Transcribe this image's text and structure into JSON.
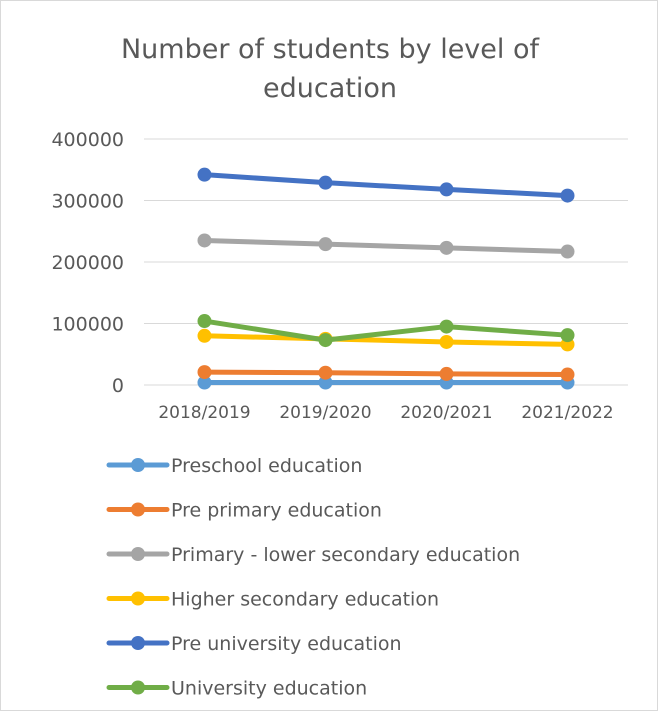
{
  "chart_data": {
    "type": "line",
    "title_lines": [
      "Number of students by level of",
      "education"
    ],
    "categories": [
      "2018/2019",
      "2019/2020",
      "2020/2021",
      "2021/2022"
    ],
    "ylim": [
      0,
      400000
    ],
    "yticks": [
      0,
      100000,
      200000,
      300000,
      400000
    ],
    "ytick_labels": [
      "0",
      "100000",
      "200000",
      "300000",
      "400000"
    ],
    "grid": true,
    "legend_position": "bottom",
    "series": [
      {
        "name": "Preschool education",
        "color": "#5B9BD5",
        "values": [
          4000,
          4000,
          4000,
          4000
        ]
      },
      {
        "name": "Pre primary education",
        "color": "#ED7D31",
        "values": [
          21000,
          20000,
          18000,
          17000
        ]
      },
      {
        "name": "Primary - lower secondary education",
        "color": "#A5A5A5",
        "values": [
          235000,
          229000,
          223000,
          217000
        ]
      },
      {
        "name": "Higher secondary education",
        "color": "#FFC000",
        "values": [
          80000,
          75000,
          70000,
          66000
        ]
      },
      {
        "name": "Pre university education",
        "color": "#4472C4",
        "values": [
          342000,
          329000,
          318000,
          308000
        ]
      },
      {
        "name": "University education",
        "color": "#70AD47",
        "values": [
          104000,
          73000,
          95000,
          81000
        ]
      }
    ]
  }
}
